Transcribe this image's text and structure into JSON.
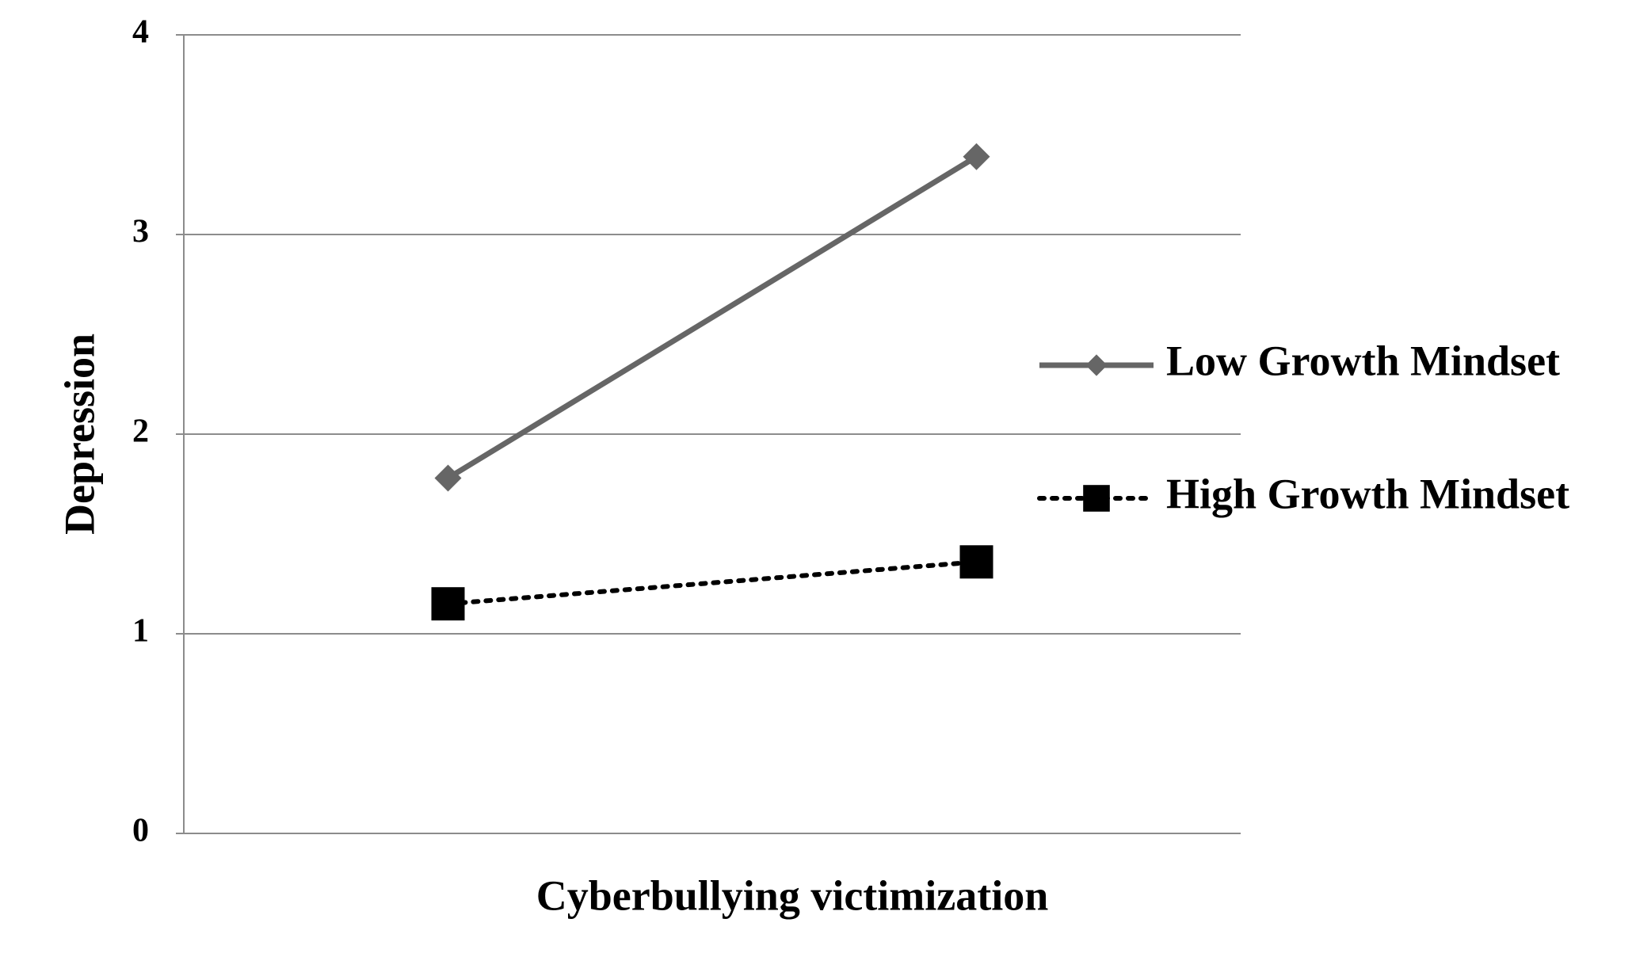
{
  "chart_data": {
    "type": "line",
    "x_label": "Cyberbullying victimization",
    "y_label": "Depression",
    "categories": [
      null,
      null
    ],
    "series": [
      {
        "name": "Low Growth Mindset",
        "color": "#666666",
        "values": [
          1.78,
          3.39
        ]
      },
      {
        "name": "High Growth Mindset",
        "color": "#000000",
        "values": [
          1.15,
          1.36
        ]
      }
    ],
    "ylim": [
      0,
      4
    ],
    "yticks": [
      0,
      1,
      2,
      3,
      4
    ],
    "grid": true,
    "legend": "right"
  }
}
